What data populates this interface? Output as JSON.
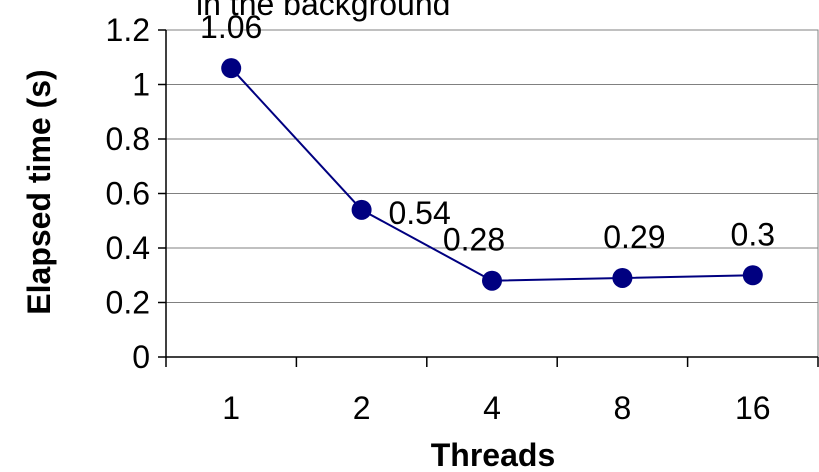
{
  "chart_data": {
    "type": "line",
    "title": "in the background",
    "xlabel": "Threads",
    "ylabel": "Elapsed time (s)",
    "categories": [
      "1",
      "2",
      "4",
      "8",
      "16"
    ],
    "series": [
      {
        "values": [
          1.06,
          0.54,
          0.28,
          0.29,
          0.3
        ],
        "color": "#000080"
      }
    ],
    "data_labels": [
      "1.06",
      "0.54",
      "0.28",
      "0.29",
      "0.3"
    ],
    "y_ticks": [
      "0",
      "0.2",
      "0.4",
      "0.6",
      "0.8",
      "1",
      "1.2"
    ],
    "ylim": [
      0,
      1.2
    ],
    "grid": true,
    "legend": "none"
  }
}
